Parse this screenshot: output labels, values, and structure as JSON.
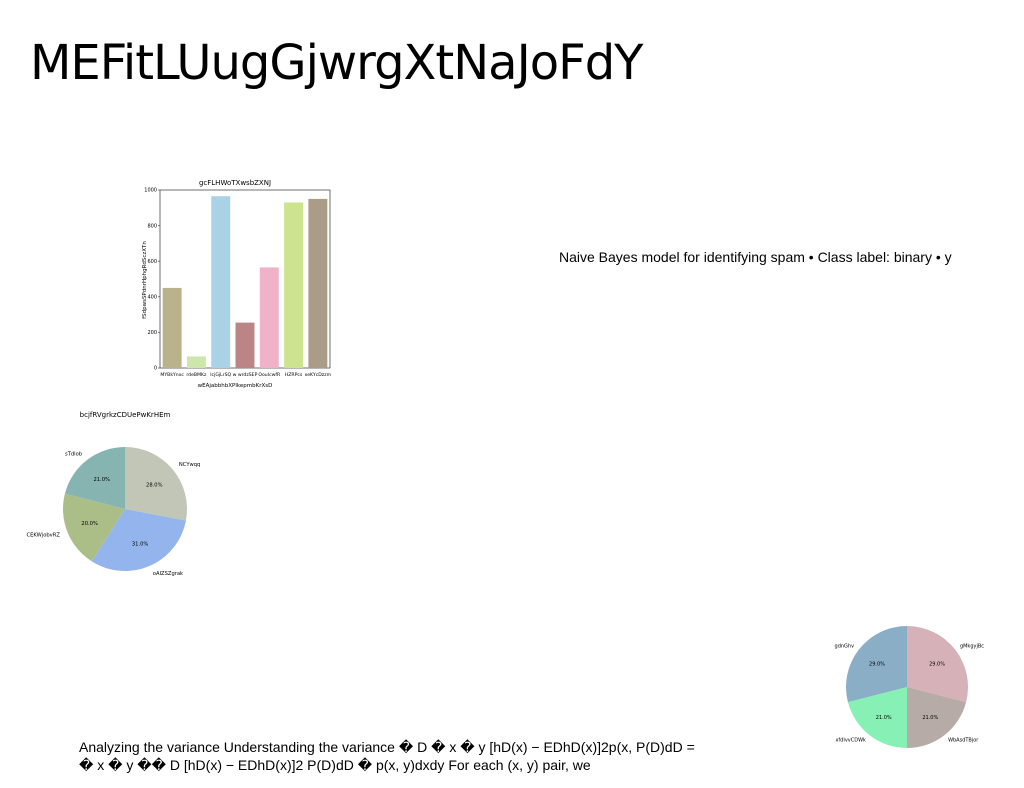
{
  "page": {
    "title": "MEFitLUugGjwrgXtNaJoFdY",
    "side_note": "Naive Bayes model for identifying spam • Class label: binary • y",
    "bottom_note": "Analyzing the variance Understanding the variance � D � x � y [hD(x) − EDhD(x)]2p(x, P(D)dD = � x � y �� D [hD(x) − EDhD(x)]2 P(D)dD � p(x, y)dxdy For each (x, y) pair, we"
  },
  "chart_data": [
    {
      "type": "bar",
      "title": "gcFLHWoTXwsbZXNJ",
      "xlabel": "wEAjabbhbXPlkepmbKrXsD",
      "ylabel": "fSdpwsSPdnrHphgRdSczXTn",
      "categories": [
        "MYBkYnxc",
        "rdeBMKz",
        "lcjGjLrSQ",
        "w wrdzSEP",
        "OouIcwfR",
        "HZRPcs",
        "xeKYcDzzm"
      ],
      "values": [
        450,
        65,
        965,
        255,
        565,
        930,
        950
      ],
      "colors": [
        "#b9b28a",
        "#cde6a9",
        "#a9d2e7",
        "#bb8586",
        "#f0b2c9",
        "#cde38f",
        "#ab9c88"
      ],
      "ylim": [
        0,
        1000
      ],
      "yticks": [
        "0",
        "200",
        "400",
        "600",
        "800",
        "1000"
      ]
    },
    {
      "type": "pie",
      "title": "bcjfRVgrkzCDUePwKrHEm",
      "labels": [
        "NCYwqq",
        "oAIZSZgrak",
        "CEKWjobvRZ",
        "sTdlob"
      ],
      "values": [
        28.0,
        31.0,
        20.0,
        21.0
      ],
      "pct_labels": [
        "28.0%",
        "31.0%",
        "20.0%",
        "21.0%"
      ],
      "colors": [
        "#c2c6b6",
        "#93b4ec",
        "#abbe88",
        "#85b4b1"
      ]
    },
    {
      "type": "pie",
      "title": "",
      "labels": [
        "gMkgyjBc",
        "WbAsdTBjor",
        "xfdIvvCDWk",
        "gdnGhv"
      ],
      "values": [
        29.0,
        21.0,
        21.0,
        29.0
      ],
      "pct_labels": [
        "29.0%",
        "21.0%",
        "21.0%",
        "29.0%"
      ],
      "colors": [
        "#d6b1b7",
        "#b6aba7",
        "#87f0b5",
        "#89aec6"
      ]
    }
  ]
}
